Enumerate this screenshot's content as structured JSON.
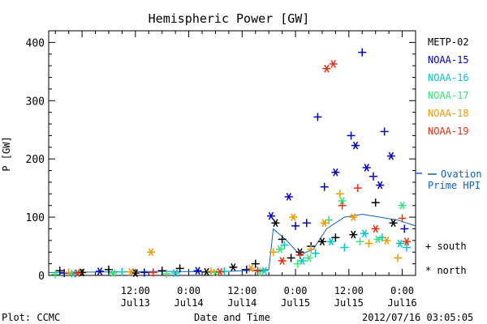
{
  "chart_data": {
    "type": "scatter",
    "title": "Hemispheric Power [GW]",
    "ylabel": "P [GW]",
    "xlabel": "Date and Time",
    "ylim": [
      0,
      420
    ],
    "xlim": [
      "2012-07-12 16:30",
      "2012-07-16 03:00"
    ],
    "yticks": [
      0,
      100,
      200,
      300,
      400
    ],
    "xticks": [
      {
        "t": "2012-07-13 12:00",
        "time": "12:00",
        "date": "Jul13"
      },
      {
        "t": "2012-07-14 00:00",
        "time": "0:00",
        "date": "Jul14"
      },
      {
        "t": "2012-07-14 12:00",
        "time": "12:00",
        "date": "Jul14"
      },
      {
        "t": "2012-07-15 00:00",
        "time": "0:00",
        "date": "Jul15"
      },
      {
        "t": "2012-07-15 12:00",
        "time": "12:00",
        "date": "Jul15"
      },
      {
        "t": "2012-07-16 00:00",
        "time": "0:00",
        "date": "Jul16"
      }
    ],
    "legend_placement": "right",
    "markers": {
      "south": "+",
      "north": "*"
    },
    "marker_legend": [
      {
        "symbol": "+",
        "label": "south"
      },
      {
        "symbol": "*",
        "label": "north"
      }
    ],
    "series": [
      {
        "name": "METP-02",
        "color": "#000000",
        "points": [
          {
            "t": "2012-07-12 19:00",
            "y": 8,
            "hemi": "south"
          },
          {
            "t": "2012-07-13 00:00",
            "y": 5,
            "hemi": "north"
          },
          {
            "t": "2012-07-13 06:00",
            "y": 10,
            "hemi": "south"
          },
          {
            "t": "2012-07-13 12:00",
            "y": 4,
            "hemi": "north"
          },
          {
            "t": "2012-07-13 18:00",
            "y": 8,
            "hemi": "south"
          },
          {
            "t": "2012-07-13 22:00",
            "y": 12,
            "hemi": "south"
          },
          {
            "t": "2012-07-14 04:00",
            "y": 6,
            "hemi": "north"
          },
          {
            "t": "2012-07-14 10:00",
            "y": 14,
            "hemi": "north"
          },
          {
            "t": "2012-07-14 15:00",
            "y": 20,
            "hemi": "south"
          },
          {
            "t": "2012-07-14 19:30",
            "y": 90,
            "hemi": "north"
          },
          {
            "t": "2012-07-14 21:00",
            "y": 62,
            "hemi": "south"
          },
          {
            "t": "2012-07-14 23:00",
            "y": 30,
            "hemi": "south"
          },
          {
            "t": "2012-07-15 01:00",
            "y": 40,
            "hemi": "north"
          },
          {
            "t": "2012-07-15 03:30",
            "y": 50,
            "hemi": "south"
          },
          {
            "t": "2012-07-15 06:00",
            "y": 58,
            "hemi": "north"
          },
          {
            "t": "2012-07-15 09:00",
            "y": 65,
            "hemi": "south"
          },
          {
            "t": "2012-07-15 13:00",
            "y": 70,
            "hemi": "north"
          },
          {
            "t": "2012-07-15 18:00",
            "y": 125,
            "hemi": "south"
          },
          {
            "t": "2012-07-15 22:00",
            "y": 90,
            "hemi": "north"
          }
        ]
      },
      {
        "name": "NOAA-15",
        "color": "#0000c8",
        "points": [
          {
            "t": "2012-07-12 20:00",
            "y": 4,
            "hemi": "south"
          },
          {
            "t": "2012-07-13 04:00",
            "y": 7,
            "hemi": "north"
          },
          {
            "t": "2012-07-13 14:00",
            "y": 5,
            "hemi": "south"
          },
          {
            "t": "2012-07-14 02:00",
            "y": 8,
            "hemi": "north"
          },
          {
            "t": "2012-07-14 13:00",
            "y": 10,
            "hemi": "south"
          },
          {
            "t": "2012-07-14 18:30",
            "y": 102,
            "hemi": "north"
          },
          {
            "t": "2012-07-15 00:00",
            "y": 85,
            "hemi": "south"
          },
          {
            "t": "2012-07-14 22:30",
            "y": 135,
            "hemi": "north"
          },
          {
            "t": "2012-07-15 02:30",
            "y": 90,
            "hemi": "south"
          },
          {
            "t": "2012-07-15 05:00",
            "y": 272,
            "hemi": "south"
          },
          {
            "t": "2012-07-15 06:30",
            "y": 152,
            "hemi": "south"
          },
          {
            "t": "2012-07-15 09:00",
            "y": 177,
            "hemi": "north"
          },
          {
            "t": "2012-07-15 12:30",
            "y": 240,
            "hemi": "south"
          },
          {
            "t": "2012-07-15 13:30",
            "y": 223,
            "hemi": "north"
          },
          {
            "t": "2012-07-15 15:00",
            "y": 383,
            "hemi": "south"
          },
          {
            "t": "2012-07-15 16:00",
            "y": 185,
            "hemi": "north"
          },
          {
            "t": "2012-07-15 17:30",
            "y": 170,
            "hemi": "south"
          },
          {
            "t": "2012-07-15 19:00",
            "y": 155,
            "hemi": "north"
          },
          {
            "t": "2012-07-15 20:00",
            "y": 247,
            "hemi": "south"
          },
          {
            "t": "2012-07-15 21:30",
            "y": 205,
            "hemi": "north"
          },
          {
            "t": "2012-07-16 00:30",
            "y": 80,
            "hemi": "south"
          }
        ]
      },
      {
        "name": "NOAA-16",
        "color": "#00c8c8",
        "points": [
          {
            "t": "2012-07-12 22:00",
            "y": 3,
            "hemi": "north"
          },
          {
            "t": "2012-07-13 09:00",
            "y": 6,
            "hemi": "south"
          },
          {
            "t": "2012-07-13 21:00",
            "y": 4,
            "hemi": "north"
          },
          {
            "t": "2012-07-14 08:00",
            "y": 7,
            "hemi": "south"
          },
          {
            "t": "2012-07-14 17:00",
            "y": 8,
            "hemi": "north"
          },
          {
            "t": "2012-07-14 21:30",
            "y": 52,
            "hemi": "south"
          },
          {
            "t": "2012-07-15 01:30",
            "y": 25,
            "hemi": "north"
          },
          {
            "t": "2012-07-15 04:30",
            "y": 38,
            "hemi": "south"
          },
          {
            "t": "2012-07-15 08:00",
            "y": 58,
            "hemi": "north"
          },
          {
            "t": "2012-07-15 11:00",
            "y": 48,
            "hemi": "south"
          },
          {
            "t": "2012-07-15 15:30",
            "y": 72,
            "hemi": "north"
          },
          {
            "t": "2012-07-15 19:30",
            "y": 65,
            "hemi": "south"
          },
          {
            "t": "2012-07-15 23:30",
            "y": 55,
            "hemi": "north"
          },
          {
            "t": "2012-07-16 01:00",
            "y": 48,
            "hemi": "south"
          }
        ]
      },
      {
        "name": "NOAA-17",
        "color": "#30e878",
        "points": [
          {
            "t": "2012-07-12 18:00",
            "y": 2,
            "hemi": "south"
          },
          {
            "t": "2012-07-13 07:00",
            "y": 4,
            "hemi": "north"
          },
          {
            "t": "2012-07-13 19:00",
            "y": 3,
            "hemi": "south"
          },
          {
            "t": "2012-07-14 06:00",
            "y": 5,
            "hemi": "north"
          },
          {
            "t": "2012-07-14 16:00",
            "y": 6,
            "hemi": "south"
          },
          {
            "t": "2012-07-14 20:30",
            "y": 45,
            "hemi": "north"
          },
          {
            "t": "2012-07-15 00:30",
            "y": 20,
            "hemi": "south"
          },
          {
            "t": "2012-07-15 03:00",
            "y": 30,
            "hemi": "north"
          },
          {
            "t": "2012-07-15 07:30",
            "y": 95,
            "hemi": "south"
          },
          {
            "t": "2012-07-15 10:30",
            "y": 128,
            "hemi": "north"
          },
          {
            "t": "2012-07-15 14:30",
            "y": 58,
            "hemi": "south"
          },
          {
            "t": "2012-07-15 18:30",
            "y": 62,
            "hemi": "north"
          },
          {
            "t": "2012-07-16 00:00",
            "y": 120,
            "hemi": "north"
          }
        ]
      },
      {
        "name": "NOAA-18",
        "color": "#f09a00",
        "points": [
          {
            "t": "2012-07-12 21:00",
            "y": 5,
            "hemi": "south"
          },
          {
            "t": "2012-07-13 11:00",
            "y": 6,
            "hemi": "north"
          },
          {
            "t": "2012-07-13 15:30",
            "y": 40,
            "hemi": "north"
          },
          {
            "t": "2012-07-14 05:00",
            "y": 7,
            "hemi": "south"
          },
          {
            "t": "2012-07-14 14:00",
            "y": 12,
            "hemi": "north"
          },
          {
            "t": "2012-07-14 19:00",
            "y": 40,
            "hemi": "south"
          },
          {
            "t": "2012-07-14 23:30",
            "y": 100,
            "hemi": "north"
          },
          {
            "t": "2012-07-15 03:30",
            "y": 45,
            "hemi": "south"
          },
          {
            "t": "2012-07-15 06:30",
            "y": 90,
            "hemi": "north"
          },
          {
            "t": "2012-07-15 10:00",
            "y": 140,
            "hemi": "south"
          },
          {
            "t": "2012-07-15 13:00",
            "y": 100,
            "hemi": "north"
          },
          {
            "t": "2012-07-15 16:30",
            "y": 55,
            "hemi": "south"
          },
          {
            "t": "2012-07-15 20:30",
            "y": 60,
            "hemi": "north"
          },
          {
            "t": "2012-07-15 23:00",
            "y": 30,
            "hemi": "south"
          }
        ]
      },
      {
        "name": "NOAA-19",
        "color": "#e83010",
        "points": [
          {
            "t": "2012-07-12 23:00",
            "y": 4,
            "hemi": "north"
          },
          {
            "t": "2012-07-13 16:00",
            "y": 5,
            "hemi": "south"
          },
          {
            "t": "2012-07-14 07:00",
            "y": 6,
            "hemi": "north"
          },
          {
            "t": "2012-07-14 15:30",
            "y": 8,
            "hemi": "south"
          },
          {
            "t": "2012-07-14 21:00",
            "y": 25,
            "hemi": "north"
          },
          {
            "t": "2012-07-15 01:00",
            "y": 35,
            "hemi": "south"
          },
          {
            "t": "2012-07-15 07:00",
            "y": 355,
            "hemi": "north"
          },
          {
            "t": "2012-07-15 08:30",
            "y": 363,
            "hemi": "north"
          },
          {
            "t": "2012-07-15 10:30",
            "y": 120,
            "hemi": "south"
          },
          {
            "t": "2012-07-15 14:00",
            "y": 150,
            "hemi": "south"
          },
          {
            "t": "2012-07-15 18:00",
            "y": 80,
            "hemi": "north"
          },
          {
            "t": "2012-07-16 00:00",
            "y": 98,
            "hemi": "south"
          },
          {
            "t": "2012-07-16 01:00",
            "y": 58,
            "hemi": "north"
          }
        ]
      }
    ],
    "ovation": {
      "name": "Ovation Prime HPI",
      "label_lines": [
        "Ovation",
        "Prime HPI"
      ],
      "color": "#1060c0",
      "points": [
        {
          "t": "2012-07-12 16:30",
          "y": 5
        },
        {
          "t": "2012-07-13 06:00",
          "y": 6
        },
        {
          "t": "2012-07-13 18:00",
          "y": 7
        },
        {
          "t": "2012-07-14 06:00",
          "y": 6
        },
        {
          "t": "2012-07-14 12:00",
          "y": 8
        },
        {
          "t": "2012-07-14 18:00",
          "y": 10
        },
        {
          "t": "2012-07-14 19:00",
          "y": 80
        },
        {
          "t": "2012-07-14 22:00",
          "y": 60
        },
        {
          "t": "2012-07-15 01:00",
          "y": 35
        },
        {
          "t": "2012-07-15 04:00",
          "y": 45
        },
        {
          "t": "2012-07-15 07:00",
          "y": 80
        },
        {
          "t": "2012-07-15 11:00",
          "y": 100
        },
        {
          "t": "2012-07-15 15:00",
          "y": 105
        },
        {
          "t": "2012-07-15 19:00",
          "y": 100
        },
        {
          "t": "2012-07-15 23:00",
          "y": 95
        },
        {
          "t": "2012-07-16 03:00",
          "y": 85
        }
      ]
    }
  },
  "footer": {
    "plot_credit": "Plot: CCMC",
    "timestamp": "2012/07/16 03:05:05"
  }
}
